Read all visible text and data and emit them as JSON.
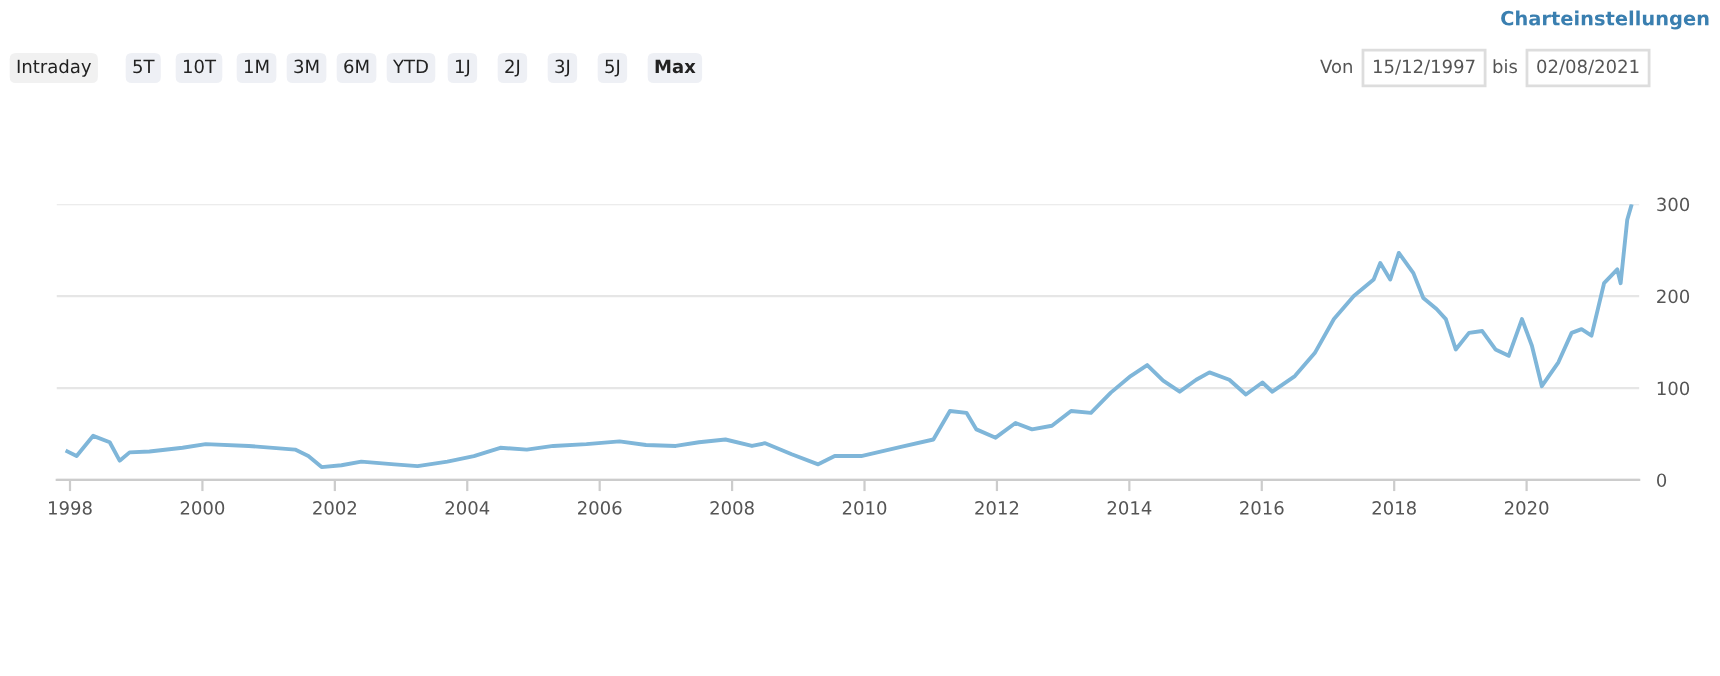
{
  "chart_data": {
    "type": "line",
    "annotations": [
      "Charteinstellungen",
      "Intraday",
      "5T",
      "10T",
      "1M",
      "3M",
      "6M",
      "YTD",
      "1J",
      "2J",
      "3J",
      "5J",
      "Max",
      "Von",
      "15/12/1997",
      "bis",
      "02/08/2021"
    ],
    "x": [
      1997.96,
      1998.1,
      1998.35,
      1998.6,
      1998.75,
      1998.9,
      1999.2,
      1999.7,
      2000.05,
      2000.7,
      2001.4,
      2001.6,
      2001.8,
      2002.1,
      2002.4,
      2002.9,
      2003.25,
      2003.7,
      2004.1,
      2004.5,
      2004.9,
      2005.3,
      2005.8,
      2006.3,
      2006.7,
      2007.15,
      2007.5,
      2007.9,
      2008.3,
      2008.5,
      2008.9,
      2009.3,
      2009.55,
      2009.95,
      2010.55,
      2011.04,
      2011.29,
      2011.54,
      2011.69,
      2011.98,
      2012.28,
      2012.53,
      2012.83,
      2013.12,
      2013.42,
      2013.72,
      2014.02,
      2014.27,
      2014.51,
      2014.76,
      2015.01,
      2015.21,
      2015.51,
      2015.76,
      2016.01,
      2016.16,
      2016.5,
      2016.8,
      2017.09,
      2017.39,
      2017.69,
      2017.79,
      2017.94,
      2018.07,
      2018.29,
      2018.44,
      2018.64,
      2018.78,
      2018.93,
      2019.13,
      2019.33,
      2019.53,
      2019.73,
      2019.93,
      2020.08,
      2020.23,
      2020.48,
      2020.68,
      2020.83,
      2020.98,
      2021.17,
      2021.37,
      2021.42,
      2021.52,
      2021.58
    ],
    "series": [
      {
        "color": "#7fb6d9",
        "values": [
          31,
          26,
          48,
          41,
          21,
          30,
          31,
          35,
          39,
          37,
          33,
          26,
          14,
          16,
          20,
          17,
          15,
          20,
          26,
          35,
          33,
          37,
          39,
          42,
          38,
          37,
          41,
          44,
          37,
          40,
          28,
          17,
          26,
          26,
          36,
          44,
          75,
          73,
          55,
          46,
          62,
          55,
          59,
          75,
          73,
          95,
          113,
          125,
          108,
          96,
          109,
          117,
          109,
          93,
          106,
          96,
          113,
          138,
          175,
          200,
          218,
          236,
          218,
          247,
          225,
          198,
          186,
          175,
          142,
          160,
          162,
          142,
          135,
          175,
          146,
          102,
          128,
          160,
          164,
          157,
          214,
          229,
          214,
          283,
          298
        ]
      }
    ],
    "xlim": [
      1997.8,
      2021.7
    ],
    "ylim": [
      0,
      300
    ],
    "xticks": [
      1998,
      2000,
      2002,
      2004,
      2006,
      2008,
      2010,
      2012,
      2014,
      2016,
      2018,
      2020
    ],
    "yticks": [
      0,
      100,
      200,
      300
    ],
    "grid": "y",
    "marker": "none",
    "line_style": "solid"
  }
}
